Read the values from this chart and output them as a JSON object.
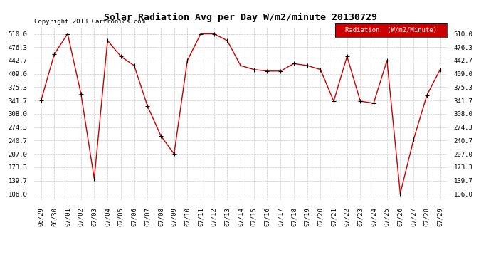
{
  "title": "Solar Radiation Avg per Day W/m2/minute 20130729",
  "copyright": "Copyright 2013 Cartronics.com",
  "legend_label": "Radiation  (W/m2/Minute)",
  "x_labels": [
    "06/29",
    "06/30",
    "07/01",
    "07/02",
    "07/03",
    "07/04",
    "07/05",
    "07/06",
    "07/07",
    "07/08",
    "07/09",
    "07/10",
    "07/11",
    "07/12",
    "07/13",
    "07/14",
    "07/15",
    "07/16",
    "07/17",
    "07/18",
    "07/19",
    "07/20",
    "07/21",
    "07/22",
    "07/23",
    "07/24",
    "07/25",
    "07/26",
    "07/27",
    "07/28",
    "07/29"
  ],
  "y_values": [
    341.7,
    459.0,
    510.0,
    359.0,
    144.0,
    493.0,
    453.0,
    430.0,
    328.0,
    253.0,
    207.0,
    442.7,
    510.0,
    510.0,
    493.0,
    430.0,
    420.0,
    416.0,
    416.0,
    435.0,
    430.0,
    420.0,
    340.0,
    453.0,
    340.0,
    335.0,
    442.7,
    107.0,
    243.0,
    355.0,
    420.0
  ],
  "yticks": [
    106.0,
    139.7,
    173.3,
    207.0,
    240.7,
    274.3,
    308.0,
    341.7,
    375.3,
    409.0,
    442.7,
    476.3,
    510.0
  ],
  "ylim": [
    90.0,
    528.0
  ],
  "line_color": "#cc0000",
  "marker_color": "#000000",
  "background_color": "#ffffff",
  "grid_color": "#c8c8c8",
  "legend_bg": "#cc0000",
  "legend_text_color": "#ffffff",
  "title_fontsize": 9.5,
  "tick_fontsize": 6.5,
  "copyright_fontsize": 6.5,
  "legend_fontsize": 6.5
}
